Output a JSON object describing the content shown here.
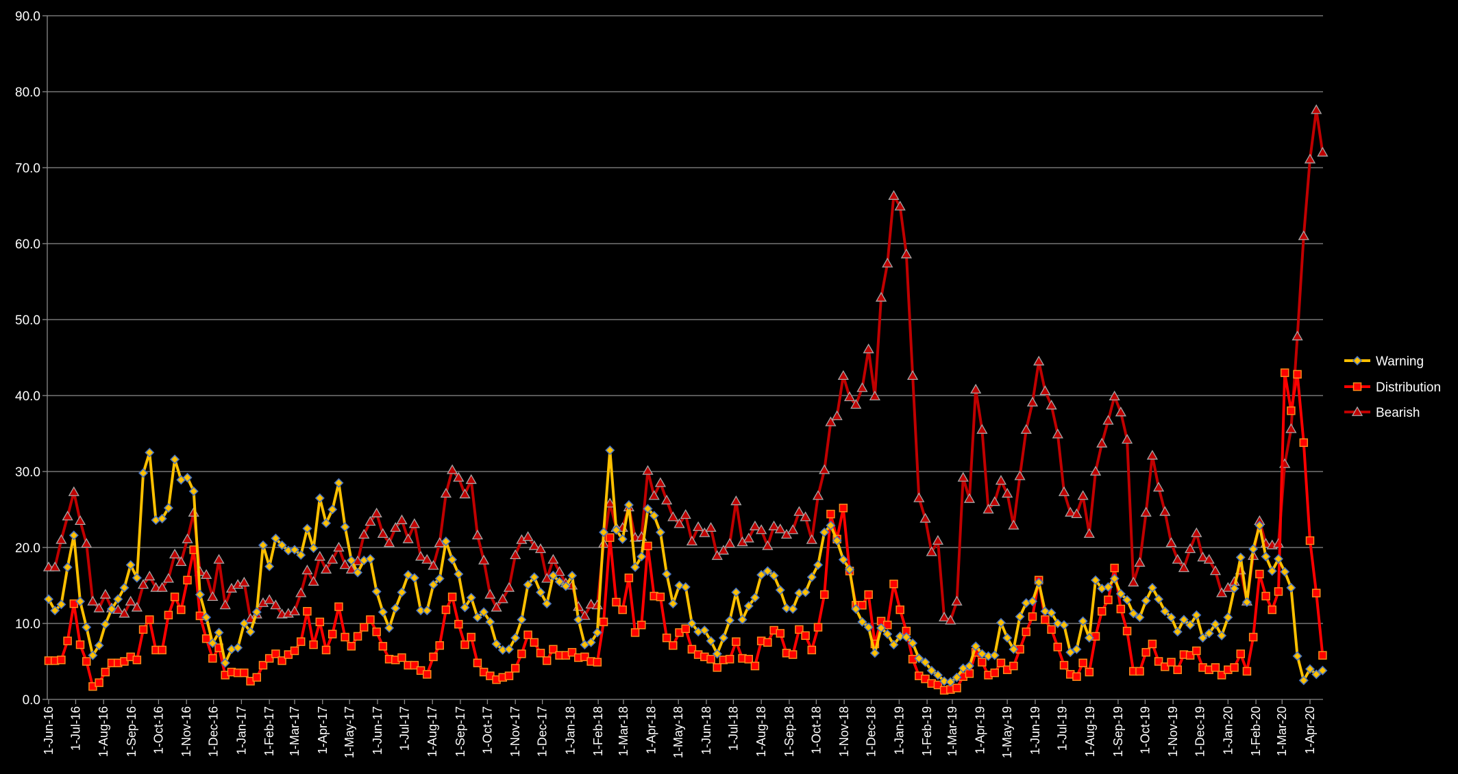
{
  "chart_data": {
    "type": "line",
    "title": "",
    "xlabel": "",
    "ylabel": "",
    "ylim": [
      0,
      90
    ],
    "y_tick_step": 10,
    "y_tick_labels": [
      "0.0",
      "10.0",
      "20.0",
      "30.0",
      "40.0",
      "50.0",
      "60.0",
      "70.0",
      "80.0",
      "90.0"
    ],
    "grid": "horizontal",
    "legend_position": "right",
    "background": "#000000",
    "x_tick_labels": [
      "1-Jun-16",
      "1-Jul-16",
      "1-Aug-16",
      "1-Sep-16",
      "1-Oct-16",
      "1-Nov-16",
      "1-Dec-16",
      "1-Jan-17",
      "1-Feb-17",
      "1-Mar-17",
      "1-Apr-17",
      "1-May-17",
      "1-Jun-17",
      "1-Jul-17",
      "1-Aug-17",
      "1-Sep-17",
      "1-Oct-17",
      "1-Nov-17",
      "1-Dec-17",
      "1-Jan-18",
      "1-Feb-18",
      "1-Mar-18",
      "1-Apr-18",
      "1-May-18",
      "1-Jun-18",
      "1-Jul-18",
      "1-Aug-18",
      "1-Sep-18",
      "1-Oct-18",
      "1-Nov-18",
      "1-Dec-18",
      "1-Jan-19",
      "1-Feb-19",
      "1-Mar-19",
      "1-Apr-19",
      "1-May-19",
      "1-Jun-19",
      "1-Jul-19",
      "1-Aug-19",
      "1-Sep-19",
      "1-Oct-19",
      "1-Nov-19",
      "1-Dec-19",
      "1-Jan-20",
      "1-Feb-20",
      "1-Mar-20",
      "1-Apr-20"
    ],
    "x": [
      "2016-06-01",
      "2016-06-08",
      "2016-06-15",
      "2016-06-22",
      "2016-06-29",
      "2016-07-06",
      "2016-07-13",
      "2016-07-20",
      "2016-07-27",
      "2016-08-03",
      "2016-08-10",
      "2016-08-17",
      "2016-08-24",
      "2016-08-31",
      "2016-09-07",
      "2016-09-14",
      "2016-09-21",
      "2016-09-28",
      "2016-10-05",
      "2016-10-12",
      "2016-10-19",
      "2016-10-26",
      "2016-11-02",
      "2016-11-09",
      "2016-11-16",
      "2016-11-23",
      "2016-11-30",
      "2016-12-07",
      "2016-12-14",
      "2016-12-21",
      "2016-12-28",
      "2017-01-04",
      "2017-01-11",
      "2017-01-18",
      "2017-01-25",
      "2017-02-01",
      "2017-02-08",
      "2017-02-15",
      "2017-02-22",
      "2017-03-01",
      "2017-03-08",
      "2017-03-15",
      "2017-03-22",
      "2017-03-29",
      "2017-04-05",
      "2017-04-12",
      "2017-04-19",
      "2017-04-26",
      "2017-05-03",
      "2017-05-10",
      "2017-05-17",
      "2017-05-24",
      "2017-05-31",
      "2017-06-07",
      "2017-06-14",
      "2017-06-21",
      "2017-06-28",
      "2017-07-05",
      "2017-07-12",
      "2017-07-19",
      "2017-07-26",
      "2017-08-02",
      "2017-08-09",
      "2017-08-16",
      "2017-08-23",
      "2017-08-30",
      "2017-09-06",
      "2017-09-13",
      "2017-09-20",
      "2017-09-27",
      "2017-10-04",
      "2017-10-11",
      "2017-10-18",
      "2017-10-25",
      "2017-11-01",
      "2017-11-08",
      "2017-11-15",
      "2017-11-22",
      "2017-11-29",
      "2017-12-06",
      "2017-12-13",
      "2017-12-20",
      "2017-12-27",
      "2018-01-03",
      "2018-01-10",
      "2018-01-17",
      "2018-01-24",
      "2018-01-31",
      "2018-02-07",
      "2018-02-14",
      "2018-02-21",
      "2018-02-28",
      "2018-03-07",
      "2018-03-14",
      "2018-03-21",
      "2018-03-28",
      "2018-04-04",
      "2018-04-11",
      "2018-04-18",
      "2018-04-25",
      "2018-05-02",
      "2018-05-09",
      "2018-05-16",
      "2018-05-23",
      "2018-05-30",
      "2018-06-06",
      "2018-06-13",
      "2018-06-20",
      "2018-06-27",
      "2018-07-04",
      "2018-07-11",
      "2018-07-18",
      "2018-07-25",
      "2018-08-01",
      "2018-08-08",
      "2018-08-15",
      "2018-08-22",
      "2018-08-29",
      "2018-09-05",
      "2018-09-12",
      "2018-09-19",
      "2018-09-26",
      "2018-10-03",
      "2018-10-10",
      "2018-10-17",
      "2018-10-24",
      "2018-10-31",
      "2018-11-07",
      "2018-11-14",
      "2018-11-21",
      "2018-11-28",
      "2018-12-05",
      "2018-12-12",
      "2018-12-19",
      "2018-12-26",
      "2019-01-02",
      "2019-01-09",
      "2019-01-16",
      "2019-01-23",
      "2019-01-30",
      "2019-02-06",
      "2019-02-13",
      "2019-02-20",
      "2019-02-27",
      "2019-03-06",
      "2019-03-13",
      "2019-03-20",
      "2019-03-27",
      "2019-04-03",
      "2019-04-10",
      "2019-04-17",
      "2019-04-24",
      "2019-05-01",
      "2019-05-08",
      "2019-05-15",
      "2019-05-22",
      "2019-05-29",
      "2019-06-05",
      "2019-06-12",
      "2019-06-19",
      "2019-06-26",
      "2019-07-03",
      "2019-07-10",
      "2019-07-17",
      "2019-07-24",
      "2019-07-31",
      "2019-08-07",
      "2019-08-14",
      "2019-08-21",
      "2019-08-28",
      "2019-09-04",
      "2019-09-11",
      "2019-09-18",
      "2019-09-25",
      "2019-10-02",
      "2019-10-09",
      "2019-10-16",
      "2019-10-23",
      "2019-10-30",
      "2019-11-06",
      "2019-11-13",
      "2019-11-20",
      "2019-11-27",
      "2019-12-04",
      "2019-12-11",
      "2019-12-18",
      "2019-12-25",
      "2020-01-01",
      "2020-01-08",
      "2020-01-15",
      "2020-01-22",
      "2020-01-29",
      "2020-02-05",
      "2020-02-12",
      "2020-02-19",
      "2020-02-26",
      "2020-03-04",
      "2020-03-11",
      "2020-03-18",
      "2020-03-25",
      "2020-04-01",
      "2020-04-08",
      "2020-04-15"
    ],
    "series": [
      {
        "name": "Warning",
        "color": "#FFC000",
        "marker": "diamond",
        "marker_edge": "#4472C4",
        "values": [
          13.2,
          11.7,
          12.5,
          17.4,
          21.6,
          12.9,
          9.5,
          5.8,
          7.1,
          9.9,
          11.9,
          13.2,
          14.7,
          17.7,
          16.0,
          29.8,
          32.5,
          23.6,
          23.8,
          25.2,
          31.6,
          28.9,
          29.2,
          27.4,
          13.8,
          10.8,
          7.4,
          8.8,
          4.8,
          6.6,
          6.8,
          10.0,
          8.9,
          11.5,
          20.3,
          17.5,
          21.2,
          20.3,
          19.6,
          19.7,
          19.0,
          22.5,
          19.9,
          26.5,
          23.2,
          25.0,
          28.5,
          22.7,
          18.3,
          16.7,
          18.3,
          18.5,
          14.2,
          11.5,
          9.4,
          12.0,
          14.1,
          16.4,
          16.0,
          11.7,
          11.7,
          15.1,
          15.9,
          20.8,
          18.4,
          16.5,
          12.1,
          13.4,
          10.8,
          11.5,
          10.2,
          7.3,
          6.5,
          6.6,
          8.1,
          10.5,
          15.1,
          16.1,
          14.1,
          12.6,
          16.3,
          15.5,
          14.9,
          16.3,
          10.5,
          7.2,
          7.5,
          8.8,
          22.0,
          32.8,
          22.3,
          21.1,
          25.6,
          17.4,
          18.8,
          25.1,
          24.2,
          22.0,
          16.5,
          12.6,
          15.0,
          14.8,
          10.0,
          8.9,
          9.1,
          7.7,
          6.0,
          8.1,
          10.4,
          14.1,
          10.5,
          12.3,
          13.4,
          16.4,
          16.9,
          16.3,
          14.4,
          12.0,
          11.9,
          14.0,
          14.1,
          16.1,
          17.7,
          22.0,
          22.9,
          20.9,
          18.4,
          17.1,
          11.9,
          10.2,
          9.5,
          6.1,
          9.4,
          8.6,
          7.2,
          8.3,
          8.2,
          7.4,
          5.4,
          4.9,
          3.8,
          3.2,
          2.4,
          2.3,
          2.9,
          4.1,
          4.4,
          7.0,
          6.0,
          5.7,
          5.8,
          10.1,
          8.1,
          6.6,
          10.9,
          12.7,
          12.9,
          15.4,
          11.6,
          11.4,
          10.0,
          9.8,
          6.2,
          6.6,
          10.3,
          8.1,
          15.7,
          14.6,
          14.8,
          15.9,
          13.9,
          13.1,
          11.3,
          10.8,
          13.0,
          14.7,
          13.2,
          11.6,
          10.8,
          8.9,
          10.5,
          9.8,
          11.1,
          8.1,
          8.7,
          9.9,
          8.4,
          10.8,
          14.6,
          18.7,
          12.8,
          19.8,
          22.9,
          18.8,
          16.9,
          18.5,
          16.8,
          14.7,
          5.7,
          2.5,
          4.0,
          3.3,
          3.8
        ]
      },
      {
        "name": "Distribution",
        "color": "#FF0000",
        "marker": "square",
        "marker_edge": "#FF8C1A",
        "values": [
          5.1,
          5.1,
          5.2,
          7.7,
          12.6,
          7.2,
          5.0,
          1.7,
          2.2,
          3.6,
          4.8,
          4.8,
          5.0,
          5.6,
          5.2,
          9.2,
          10.5,
          6.5,
          6.5,
          11.1,
          13.5,
          11.8,
          15.7,
          19.7,
          11.0,
          8.0,
          5.4,
          6.8,
          3.2,
          3.6,
          3.5,
          3.5,
          2.4,
          2.9,
          4.5,
          5.4,
          6.0,
          5.1,
          5.9,
          6.4,
          7.6,
          11.6,
          7.2,
          10.2,
          6.5,
          8.6,
          12.2,
          8.2,
          7.0,
          8.3,
          9.5,
          10.5,
          8.9,
          7.0,
          5.3,
          5.2,
          5.5,
          4.5,
          4.5,
          3.8,
          3.3,
          5.6,
          7.1,
          11.8,
          13.5,
          9.9,
          7.2,
          8.2,
          4.8,
          3.6,
          3.1,
          2.6,
          2.9,
          3.1,
          4.1,
          6.0,
          8.5,
          7.5,
          6.1,
          5.1,
          6.6,
          5.8,
          5.8,
          6.2,
          5.5,
          5.6,
          5.0,
          4.9,
          10.2,
          21.3,
          12.8,
          11.8,
          16.0,
          8.8,
          9.8,
          20.2,
          13.6,
          13.5,
          8.1,
          7.1,
          8.8,
          9.3,
          6.6,
          5.9,
          5.6,
          5.3,
          4.2,
          5.2,
          5.3,
          7.6,
          5.4,
          5.3,
          4.4,
          7.7,
          7.5,
          9.1,
          8.7,
          6.1,
          5.9,
          9.2,
          8.4,
          6.5,
          9.5,
          13.8,
          24.4,
          21.1,
          25.2,
          16.9,
          12.4,
          12.4,
          13.8,
          7.3,
          10.3,
          9.8,
          15.2,
          11.8,
          9.0,
          5.3,
          3.1,
          2.7,
          2.1,
          1.9,
          1.2,
          1.3,
          1.5,
          3.0,
          3.4,
          6.2,
          4.9,
          3.2,
          3.5,
          4.8,
          3.9,
          4.4,
          6.6,
          8.9,
          10.9,
          15.7,
          10.5,
          9.2,
          6.9,
          4.5,
          3.3,
          3.0,
          4.8,
          3.6,
          8.3,
          11.6,
          13.1,
          17.3,
          11.9,
          9.0,
          3.7,
          3.7,
          6.2,
          7.3,
          5.0,
          4.3,
          4.9,
          3.9,
          5.9,
          5.8,
          6.4,
          4.2,
          3.9,
          4.2,
          3.2,
          3.9,
          4.2,
          6.0,
          3.7,
          8.2,
          16.5,
          13.6,
          11.8,
          14.2,
          43.0,
          38.0,
          42.8,
          33.8,
          20.9,
          14.0,
          5.8
        ]
      },
      {
        "name": "Bearish",
        "color": "#C00000",
        "marker": "triangle",
        "marker_edge": "#A6A6A6",
        "values": [
          17.4,
          17.4,
          21.0,
          24.1,
          27.3,
          23.5,
          20.5,
          12.9,
          12.0,
          13.8,
          12.0,
          11.8,
          11.3,
          12.9,
          12.1,
          15.1,
          16.2,
          14.7,
          14.7,
          15.9,
          19.1,
          18.1,
          21.1,
          24.6,
          16.8,
          16.4,
          13.5,
          18.4,
          12.4,
          14.6,
          15.1,
          15.4,
          10.6,
          11.2,
          12.7,
          13.1,
          12.4,
          11.2,
          11.3,
          11.6,
          14.0,
          17.0,
          15.5,
          18.8,
          17.1,
          18.4,
          20.0,
          17.7,
          17.1,
          18.2,
          21.7,
          23.4,
          24.5,
          21.8,
          20.6,
          22.6,
          23.6,
          21.1,
          23.1,
          18.8,
          18.4,
          17.6,
          20.6,
          27.1,
          30.2,
          29.2,
          27.0,
          28.9,
          21.6,
          18.3,
          13.8,
          12.1,
          13.2,
          14.7,
          19.0,
          21.0,
          21.4,
          20.2,
          19.8,
          15.9,
          18.4,
          16.8,
          15.3,
          15.0,
          12.2,
          11.0,
          12.5,
          12.4,
          20.5,
          25.8,
          22.6,
          22.6,
          25.3,
          21.3,
          21.4,
          30.1,
          26.8,
          28.5,
          26.2,
          24.0,
          23.1,
          24.3,
          20.8,
          22.7,
          21.9,
          22.6,
          18.9,
          19.6,
          20.5,
          26.1,
          20.7,
          21.2,
          22.8,
          22.3,
          20.2,
          22.8,
          22.4,
          21.7,
          22.3,
          24.7,
          24.0,
          21.0,
          26.8,
          30.2,
          36.5,
          37.3,
          42.6,
          39.8,
          38.8,
          41.0,
          46.1,
          39.9,
          52.9,
          57.4,
          66.3,
          64.9,
          58.6,
          42.6,
          26.5,
          23.8,
          19.4,
          20.9,
          10.8,
          10.4,
          12.9,
          29.2,
          26.4,
          40.8,
          35.5,
          25.0,
          26.0,
          28.8,
          27.1,
          22.9,
          29.4,
          35.5,
          39.1,
          44.5,
          40.6,
          38.7,
          34.9,
          27.3,
          24.6,
          24.4,
          26.8,
          21.8,
          30.0,
          33.7,
          36.7,
          39.9,
          37.8,
          34.2,
          15.4,
          18.0,
          24.6,
          32.1,
          27.9,
          24.7,
          20.6,
          18.4,
          17.3,
          19.8,
          21.9,
          18.7,
          18.4,
          16.9,
          14.0,
          14.7,
          15.5,
          17.0,
          12.9,
          18.9,
          23.5,
          20.5,
          20.3,
          20.5,
          31.0,
          35.6,
          47.8,
          61.0,
          71.1,
          77.6,
          72.0
        ]
      }
    ]
  }
}
